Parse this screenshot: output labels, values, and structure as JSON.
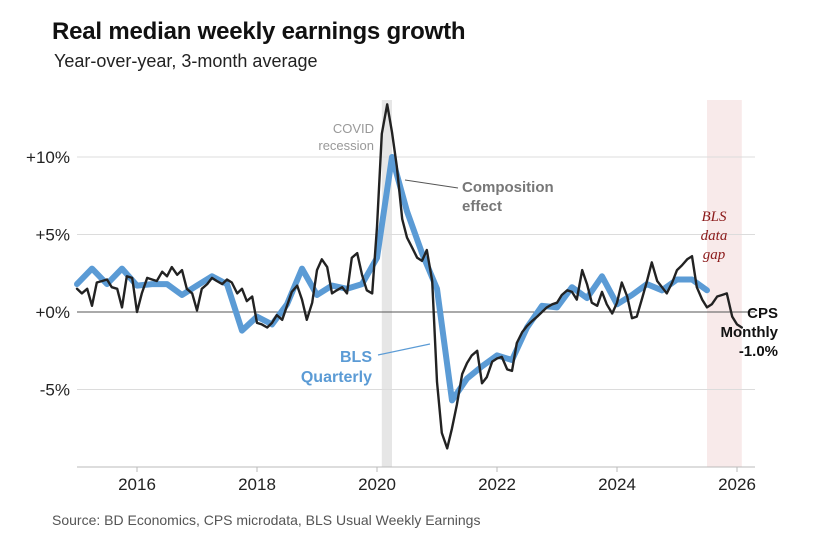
{
  "chart_data": {
    "type": "line",
    "title": "Real median weekly earnings growth",
    "subtitle": "Year-over-year, 3-month average",
    "source": "Source: BD Economics, CPS microdata, BLS Usual Weekly Earnings",
    "xlim": [
      2015.0,
      2026.3
    ],
    "ylim": [
      -10,
      14
    ],
    "x_ticks": [
      {
        "value": 2016,
        "label": "2016"
      },
      {
        "value": 2018,
        "label": "2018"
      },
      {
        "value": 2020,
        "label": "2020"
      },
      {
        "value": 2022,
        "label": "2022"
      },
      {
        "value": 2024,
        "label": "2024"
      },
      {
        "value": 2026,
        "label": "2026"
      }
    ],
    "y_ticks": [
      {
        "value": 10,
        "label": "+10%"
      },
      {
        "value": 5,
        "label": "+5%"
      },
      {
        "value": 0,
        "label": "+0%"
      },
      {
        "value": -5,
        "label": "-5%"
      }
    ],
    "grid": true,
    "shaded_regions": [
      {
        "label": "COVID recession",
        "x": [
          2020.08,
          2020.25
        ],
        "color": "#e6e6e6"
      },
      {
        "label": "BLS data gap",
        "x": [
          2025.5,
          2026.08
        ],
        "color": "#f8eaea"
      }
    ],
    "annotations": {
      "covid_line1": "COVID",
      "covid_line2": "recession",
      "composition_line1": "Composition",
      "composition_line2": "effect",
      "bls_line1": "BLS",
      "bls_line2": "Quarterly",
      "gap_line1": "BLS",
      "gap_line2": "data",
      "gap_line3": "gap",
      "cps_line1": "CPS",
      "cps_line2": "Monthly",
      "cps_line3": "-1.0%"
    },
    "series": [
      {
        "name": "BLS Quarterly",
        "color": "#5b9bd5",
        "x": [
          2015.0,
          2015.25,
          2015.5,
          2015.75,
          2016.0,
          2016.25,
          2016.5,
          2016.75,
          2017.0,
          2017.25,
          2017.5,
          2017.75,
          2018.0,
          2018.25,
          2018.5,
          2018.75,
          2019.0,
          2019.25,
          2019.5,
          2019.75,
          2020.0,
          2020.25,
          2020.5,
          2020.75,
          2021.0,
          2021.25,
          2021.5,
          2021.75,
          2022.0,
          2022.25,
          2022.5,
          2022.75,
          2023.0,
          2023.25,
          2023.5,
          2023.75,
          2024.0,
          2024.25,
          2024.5,
          2024.75,
          2025.0,
          2025.25,
          2025.5
        ],
        "y": [
          1.8,
          2.8,
          1.8,
          2.8,
          1.7,
          1.8,
          1.8,
          1.1,
          1.7,
          2.3,
          1.8,
          -1.2,
          -0.3,
          -0.8,
          0.5,
          2.8,
          1.1,
          1.7,
          1.5,
          1.8,
          3.5,
          10.0,
          6.5,
          3.8,
          1.5,
          -5.7,
          -4.3,
          -3.5,
          -2.8,
          -3.1,
          -1.0,
          0.4,
          0.3,
          1.6,
          0.9,
          2.3,
          0.5,
          1.1,
          1.8,
          1.4,
          2.1,
          2.1,
          1.4
        ]
      },
      {
        "name": "CPS Monthly",
        "color": "#222222",
        "x": [
          2015.0,
          2015.08,
          2015.17,
          2015.25,
          2015.33,
          2015.42,
          2015.5,
          2015.58,
          2015.67,
          2015.75,
          2015.83,
          2015.92,
          2016.0,
          2016.08,
          2016.17,
          2016.25,
          2016.33,
          2016.42,
          2016.5,
          2016.58,
          2016.67,
          2016.75,
          2016.83,
          2016.92,
          2017.0,
          2017.08,
          2017.17,
          2017.25,
          2017.33,
          2017.42,
          2017.5,
          2017.58,
          2017.67,
          2017.75,
          2017.83,
          2017.92,
          2018.0,
          2018.08,
          2018.17,
          2018.25,
          2018.33,
          2018.42,
          2018.5,
          2018.58,
          2018.67,
          2018.75,
          2018.83,
          2018.92,
          2019.0,
          2019.08,
          2019.17,
          2019.25,
          2019.33,
          2019.42,
          2019.5,
          2019.58,
          2019.67,
          2019.75,
          2019.83,
          2019.92,
          2020.0,
          2020.08,
          2020.17,
          2020.25,
          2020.33,
          2020.42,
          2020.5,
          2020.58,
          2020.67,
          2020.75,
          2020.83,
          2020.92,
          2021.0,
          2021.08,
          2021.17,
          2021.25,
          2021.33,
          2021.42,
          2021.5,
          2021.58,
          2021.67,
          2021.75,
          2021.83,
          2021.92,
          2022.0,
          2022.08,
          2022.17,
          2022.25,
          2022.33,
          2022.42,
          2022.5,
          2022.58,
          2022.67,
          2022.75,
          2022.83,
          2022.92,
          2023.0,
          2023.08,
          2023.17,
          2023.25,
          2023.33,
          2023.42,
          2023.5,
          2023.58,
          2023.67,
          2023.75,
          2023.83,
          2023.92,
          2024.0,
          2024.08,
          2024.17,
          2024.25,
          2024.33,
          2024.42,
          2024.5,
          2024.58,
          2024.67,
          2024.75,
          2024.83,
          2024.92,
          2025.0,
          2025.08,
          2025.17,
          2025.25,
          2025.33,
          2025.42,
          2025.5,
          2025.58,
          2025.67,
          2025.75,
          2025.83,
          2025.92,
          2026.0,
          2026.08
        ],
        "y": [
          1.5,
          1.2,
          1.5,
          0.4,
          1.9,
          2.0,
          2.1,
          1.6,
          1.5,
          0.3,
          2.3,
          2.2,
          0.0,
          1.2,
          2.2,
          2.1,
          2.0,
          2.6,
          2.3,
          2.9,
          2.4,
          2.7,
          1.5,
          1.2,
          0.1,
          1.5,
          1.8,
          2.2,
          2.0,
          1.8,
          2.1,
          1.9,
          1.2,
          1.5,
          0.7,
          1.0,
          -0.7,
          -0.8,
          -1.0,
          -0.7,
          -0.2,
          -0.5,
          0.4,
          1.3,
          1.7,
          0.8,
          -0.5,
          0.6,
          2.7,
          3.4,
          2.9,
          1.2,
          1.4,
          1.6,
          1.2,
          3.5,
          3.8,
          2.4,
          1.4,
          1.2,
          5.5,
          11.5,
          13.4,
          11.6,
          9.4,
          6.0,
          4.8,
          4.2,
          3.5,
          3.3,
          4.0,
          2.0,
          -4.5,
          -7.8,
          -8.8,
          -7.5,
          -6.0,
          -4.0,
          -3.3,
          -2.8,
          -2.5,
          -4.6,
          -4.2,
          -3.2,
          -3.0,
          -2.9,
          -3.7,
          -3.8,
          -2.0,
          -1.3,
          -0.9,
          -0.6,
          -0.3,
          0.0,
          0.3,
          0.5,
          0.6,
          1.1,
          1.4,
          1.3,
          0.8,
          2.7,
          1.8,
          0.6,
          0.4,
          1.3,
          0.5,
          -0.1,
          0.6,
          1.9,
          1.0,
          -0.4,
          -0.3,
          0.9,
          2.0,
          3.2,
          2.0,
          1.6,
          1.2,
          1.9,
          2.7,
          3.0,
          3.4,
          3.6,
          1.6,
          0.8,
          0.3,
          0.5,
          1.0,
          1.1,
          1.2,
          -0.3,
          -0.8,
          -1.0
        ]
      }
    ]
  }
}
